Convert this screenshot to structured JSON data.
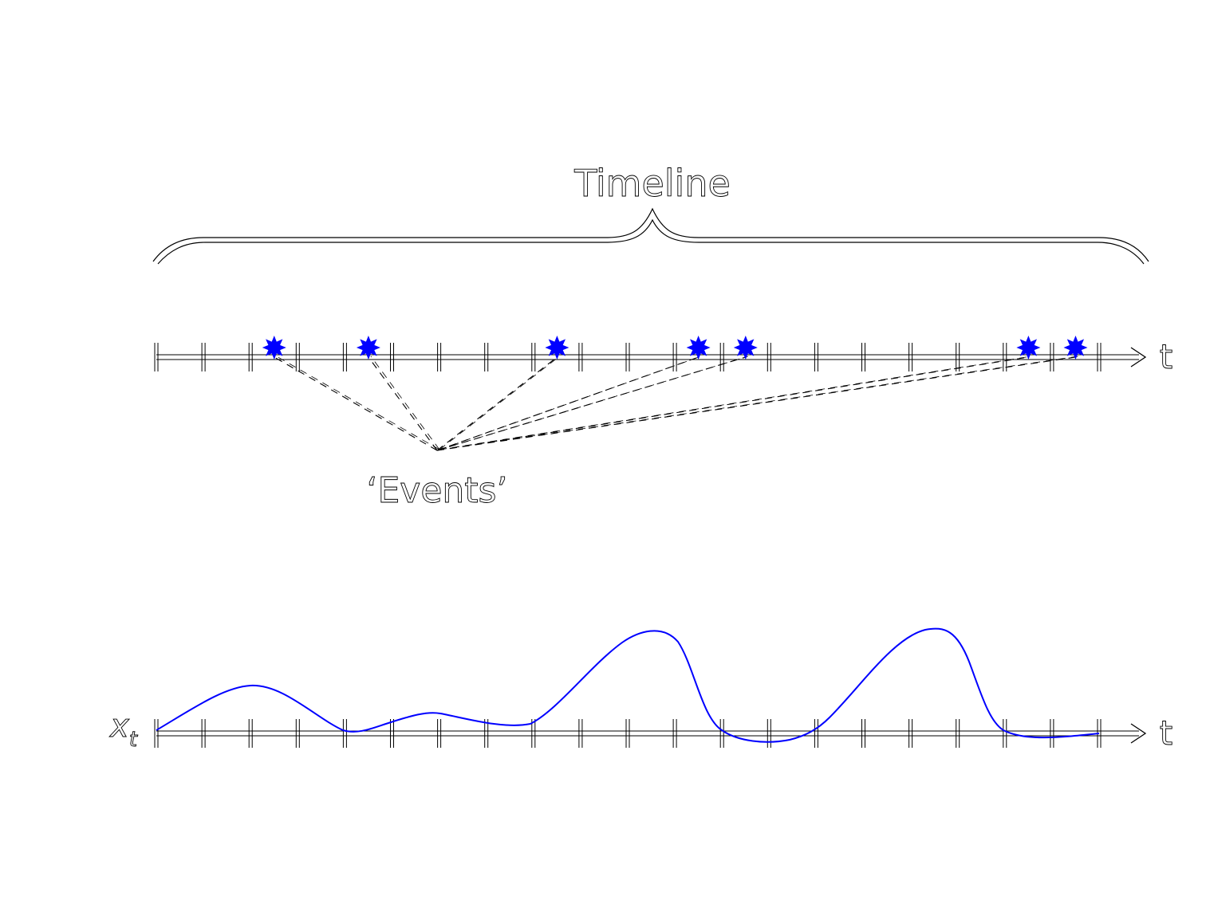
{
  "timeline_label": "Timeline",
  "events_label": "‘Events’",
  "axis_label_t": "t",
  "series_label": "x",
  "series_subscript": "t",
  "event_tick_indices": [
    2.5,
    4.5,
    8.5,
    11.5,
    12.5,
    18.5,
    19.5
  ],
  "tick_count": 21,
  "colors": {
    "event_marker": "#0000ff",
    "curve": "#0000ff",
    "line": "#000000"
  }
}
